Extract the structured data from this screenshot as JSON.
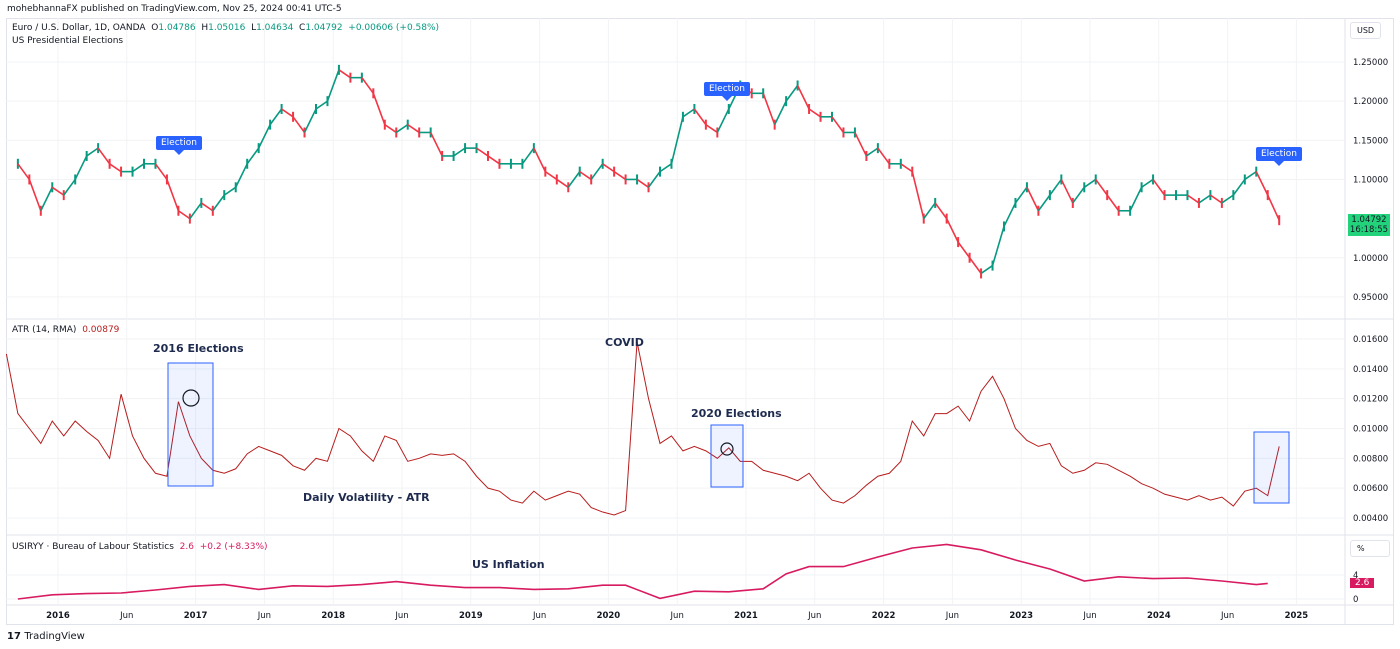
{
  "header": {
    "publisher": "mohebhannaFX published on TradingView.com, Nov 25, 2024 00:41 UTC-5"
  },
  "legend": {
    "symbol": "Euro / U.S. Dollar, 1D, OANDA",
    "o_label": "O",
    "o": "1.04786",
    "h_label": "H",
    "h": "1.05016",
    "l_label": "L",
    "l": "1.04634",
    "c_label": "C",
    "c": "1.04792",
    "change": "+0.00606 (+0.58%)",
    "study": "US Presidential Elections"
  },
  "price_scale": {
    "currency": "USD",
    "ticks": [
      "1.25000",
      "1.20000",
      "1.15000",
      "1.10000",
      "1.00000",
      "0.95000"
    ],
    "last_price": "1.04792",
    "countdown": "16:18:55"
  },
  "atr": {
    "label": "ATR (14, RMA)",
    "value": "0.00879",
    "ticks": [
      "0.01600",
      "0.01400",
      "0.01200",
      "0.01000",
      "0.00800",
      "0.00600",
      "0.00400"
    ]
  },
  "cpi": {
    "label": "USIRYY · Bureau of Labour Statistics",
    "value": "2.6",
    "change": "+0.2 (+8.33%)",
    "unit": "%",
    "ticks": [
      "4",
      "0"
    ],
    "last": "2.6"
  },
  "annotations": {
    "election": "Election",
    "e2016": "2016 Elections",
    "covid": "COVID",
    "e2020": "2020 Elections",
    "atr_note": "Daily Volatility - ATR",
    "inflation": "US Inflation"
  },
  "time_axis": [
    "2016",
    "Jun",
    "2017",
    "Jun",
    "2018",
    "Jun",
    "2019",
    "Jun",
    "2020",
    "Jun",
    "2021",
    "Jun",
    "2022",
    "Jun",
    "2023",
    "Jun",
    "2024",
    "Jun",
    "2025"
  ],
  "footer": {
    "brand": "TradingView"
  },
  "colors": {
    "up": "#089981",
    "down": "#f23645",
    "atr": "#b71c1c",
    "cpi": "#d81b60",
    "accent": "#2962ff",
    "last_price_bg": "#22d37b"
  },
  "chart_data": [
    {
      "type": "line",
      "title": "Euro / U.S. Dollar, 1D, OANDA",
      "ylim": [
        0.93,
        1.27
      ],
      "x": [
        "2015-09",
        "2015-10",
        "2015-11",
        "2015-12",
        "2016-01",
        "2016-02",
        "2016-03",
        "2016-04",
        "2016-05",
        "2016-06",
        "2016-07",
        "2016-08",
        "2016-09",
        "2016-10",
        "2016-11",
        "2016-12",
        "2017-01",
        "2017-02",
        "2017-03",
        "2017-04",
        "2017-05",
        "2017-06",
        "2017-07",
        "2017-08",
        "2017-09",
        "2017-10",
        "2017-11",
        "2017-12",
        "2018-01",
        "2018-02",
        "2018-03",
        "2018-04",
        "2018-05",
        "2018-06",
        "2018-07",
        "2018-08",
        "2018-09",
        "2018-10",
        "2018-11",
        "2018-12",
        "2019-01",
        "2019-02",
        "2019-03",
        "2019-04",
        "2019-05",
        "2019-06",
        "2019-07",
        "2019-08",
        "2019-09",
        "2019-10",
        "2019-11",
        "2019-12",
        "2020-01",
        "2020-02",
        "2020-03",
        "2020-04",
        "2020-05",
        "2020-06",
        "2020-07",
        "2020-08",
        "2020-09",
        "2020-10",
        "2020-11",
        "2020-12",
        "2021-01",
        "2021-02",
        "2021-03",
        "2021-04",
        "2021-05",
        "2021-06",
        "2021-07",
        "2021-08",
        "2021-09",
        "2021-10",
        "2021-11",
        "2021-12",
        "2022-01",
        "2022-02",
        "2022-03",
        "2022-04",
        "2022-05",
        "2022-06",
        "2022-07",
        "2022-08",
        "2022-09",
        "2022-10",
        "2022-11",
        "2022-12",
        "2023-01",
        "2023-02",
        "2023-03",
        "2023-04",
        "2023-05",
        "2023-06",
        "2023-07",
        "2023-08",
        "2023-09",
        "2023-10",
        "2023-11",
        "2023-12",
        "2024-01",
        "2024-02",
        "2024-03",
        "2024-04",
        "2024-05",
        "2024-06",
        "2024-07",
        "2024-08",
        "2024-09",
        "2024-10",
        "2024-11"
      ],
      "values": [
        1.12,
        1.1,
        1.06,
        1.09,
        1.08,
        1.1,
        1.13,
        1.14,
        1.12,
        1.11,
        1.11,
        1.12,
        1.12,
        1.1,
        1.06,
        1.05,
        1.07,
        1.06,
        1.08,
        1.09,
        1.12,
        1.14,
        1.17,
        1.19,
        1.18,
        1.16,
        1.19,
        1.2,
        1.24,
        1.23,
        1.23,
        1.21,
        1.17,
        1.16,
        1.17,
        1.16,
        1.16,
        1.13,
        1.13,
        1.14,
        1.14,
        1.13,
        1.12,
        1.12,
        1.12,
        1.14,
        1.11,
        1.1,
        1.09,
        1.11,
        1.1,
        1.12,
        1.11,
        1.1,
        1.1,
        1.09,
        1.11,
        1.12,
        1.18,
        1.19,
        1.17,
        1.16,
        1.19,
        1.22,
        1.21,
        1.21,
        1.17,
        1.2,
        1.22,
        1.19,
        1.18,
        1.18,
        1.16,
        1.16,
        1.13,
        1.14,
        1.12,
        1.12,
        1.11,
        1.05,
        1.07,
        1.05,
        1.02,
        1.0,
        0.98,
        0.99,
        1.04,
        1.07,
        1.09,
        1.06,
        1.08,
        1.1,
        1.07,
        1.09,
        1.1,
        1.08,
        1.06,
        1.06,
        1.09,
        1.1,
        1.08,
        1.08,
        1.08,
        1.07,
        1.08,
        1.07,
        1.08,
        1.1,
        1.11,
        1.08,
        1.048
      ],
      "election_markers": [
        "2016-11",
        "2020-11",
        "2024-11"
      ]
    },
    {
      "type": "line",
      "title": "ATR (14, RMA)",
      "ylim": [
        0.0035,
        0.0165
      ],
      "x": [
        "2015-08",
        "2015-09",
        "2015-10",
        "2015-11",
        "2015-12",
        "2016-01",
        "2016-02",
        "2016-03",
        "2016-04",
        "2016-05",
        "2016-06",
        "2016-07",
        "2016-08",
        "2016-09",
        "2016-10",
        "2016-11",
        "2016-12",
        "2017-01",
        "2017-02",
        "2017-03",
        "2017-04",
        "2017-05",
        "2017-06",
        "2017-07",
        "2017-08",
        "2017-09",
        "2017-10",
        "2017-11",
        "2017-12",
        "2018-01",
        "2018-02",
        "2018-03",
        "2018-04",
        "2018-05",
        "2018-06",
        "2018-07",
        "2018-08",
        "2018-09",
        "2018-10",
        "2018-11",
        "2018-12",
        "2019-01",
        "2019-02",
        "2019-03",
        "2019-04",
        "2019-05",
        "2019-06",
        "2019-07",
        "2019-08",
        "2019-09",
        "2019-10",
        "2019-11",
        "2019-12",
        "2020-01",
        "2020-02",
        "2020-03",
        "2020-04",
        "2020-05",
        "2020-06",
        "2020-07",
        "2020-08",
        "2020-09",
        "2020-10",
        "2020-11",
        "2020-12",
        "2021-01",
        "2021-02",
        "2021-03",
        "2021-04",
        "2021-05",
        "2021-06",
        "2021-07",
        "2021-08",
        "2021-09",
        "2021-10",
        "2021-11",
        "2021-12",
        "2022-01",
        "2022-02",
        "2022-03",
        "2022-04",
        "2022-05",
        "2022-06",
        "2022-07",
        "2022-08",
        "2022-09",
        "2022-10",
        "2022-11",
        "2022-12",
        "2023-01",
        "2023-02",
        "2023-03",
        "2023-04",
        "2023-05",
        "2023-06",
        "2023-07",
        "2023-08",
        "2023-09",
        "2023-10",
        "2023-11",
        "2023-12",
        "2024-01",
        "2024-02",
        "2024-03",
        "2024-04",
        "2024-05",
        "2024-06",
        "2024-07",
        "2024-08",
        "2024-09",
        "2024-10",
        "2024-11"
      ],
      "values": [
        0.015,
        0.011,
        0.01,
        0.009,
        0.0105,
        0.0095,
        0.0105,
        0.0098,
        0.0092,
        0.008,
        0.0123,
        0.0095,
        0.008,
        0.007,
        0.0068,
        0.0118,
        0.0095,
        0.008,
        0.0072,
        0.007,
        0.0073,
        0.0083,
        0.0088,
        0.0085,
        0.0082,
        0.0075,
        0.0072,
        0.008,
        0.0078,
        0.01,
        0.0095,
        0.0085,
        0.0078,
        0.0095,
        0.0092,
        0.0078,
        0.008,
        0.0083,
        0.0082,
        0.0083,
        0.0078,
        0.0068,
        0.006,
        0.0058,
        0.0052,
        0.005,
        0.0058,
        0.0052,
        0.0055,
        0.0058,
        0.0056,
        0.0047,
        0.0044,
        0.0042,
        0.0045,
        0.0158,
        0.012,
        0.009,
        0.0095,
        0.0085,
        0.0088,
        0.0085,
        0.008,
        0.0087,
        0.0078,
        0.0078,
        0.0072,
        0.007,
        0.0068,
        0.0065,
        0.007,
        0.006,
        0.0052,
        0.005,
        0.0055,
        0.0062,
        0.0068,
        0.007,
        0.0078,
        0.0105,
        0.0095,
        0.011,
        0.011,
        0.0115,
        0.0105,
        0.0125,
        0.0135,
        0.012,
        0.01,
        0.0092,
        0.0088,
        0.009,
        0.0075,
        0.007,
        0.0072,
        0.0077,
        0.0076,
        0.0072,
        0.0068,
        0.0063,
        0.006,
        0.0056,
        0.0054,
        0.0052,
        0.0055,
        0.0052,
        0.0054,
        0.0048,
        0.0058,
        0.006,
        0.0055,
        0.0088
      ]
    },
    {
      "type": "line",
      "title": "USIRYY · Bureau of Labour Statistics",
      "ylabel": "%",
      "ylim": [
        -0.5,
        10
      ],
      "x": [
        "2015-09",
        "2015-12",
        "2016-03",
        "2016-06",
        "2016-09",
        "2016-12",
        "2017-03",
        "2017-06",
        "2017-09",
        "2017-12",
        "2018-03",
        "2018-06",
        "2018-09",
        "2018-12",
        "2019-03",
        "2019-06",
        "2019-09",
        "2019-12",
        "2020-02",
        "2020-05",
        "2020-08",
        "2020-11",
        "2021-02",
        "2021-04",
        "2021-06",
        "2021-09",
        "2021-12",
        "2022-03",
        "2022-06",
        "2022-09",
        "2022-12",
        "2023-03",
        "2023-06",
        "2023-09",
        "2023-12",
        "2024-03",
        "2024-06",
        "2024-09",
        "2024-10"
      ],
      "values": [
        0.0,
        0.7,
        0.9,
        1.0,
        1.5,
        2.1,
        2.4,
        1.6,
        2.2,
        2.1,
        2.4,
        2.9,
        2.3,
        1.9,
        1.9,
        1.6,
        1.7,
        2.3,
        2.3,
        0.1,
        1.3,
        1.2,
        1.7,
        4.2,
        5.4,
        5.4,
        7.0,
        8.5,
        9.1,
        8.2,
        6.5,
        5.0,
        3.0,
        3.7,
        3.4,
        3.5,
        3.0,
        2.4,
        2.6
      ]
    }
  ]
}
